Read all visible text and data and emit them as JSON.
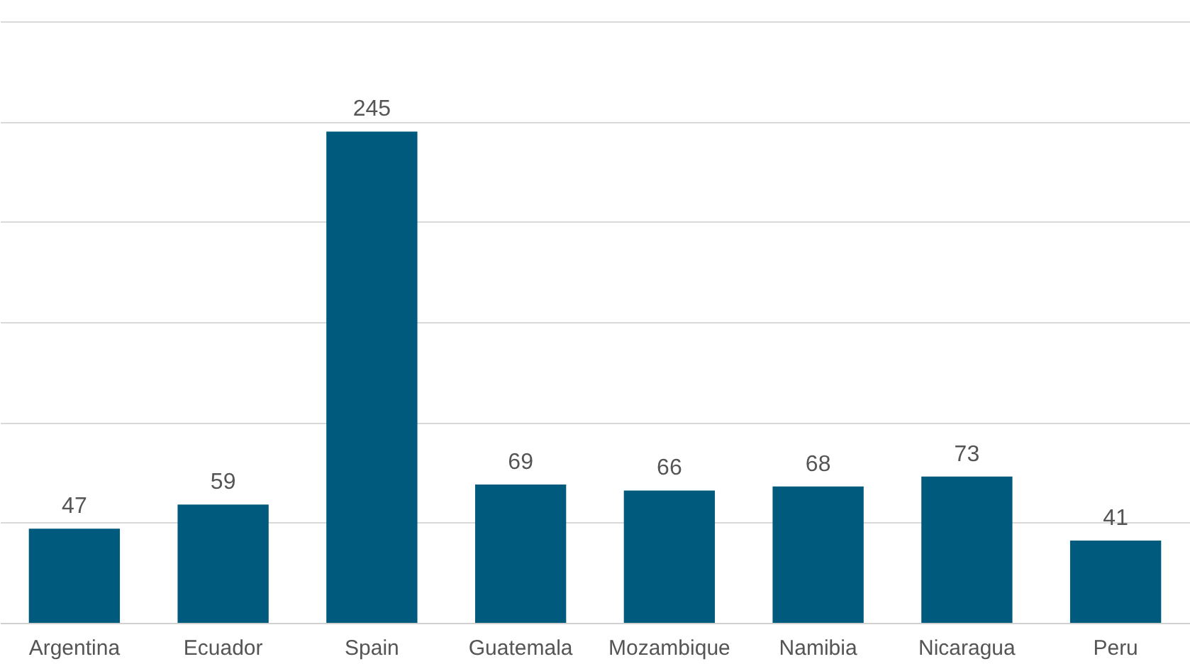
{
  "chart_data": {
    "type": "bar",
    "categories": [
      "Argentina",
      "Ecuador",
      "Spain",
      "Guatemala",
      "Mozambique",
      "Namibia",
      "Nicaragua",
      "Peru"
    ],
    "values": [
      47,
      59,
      245,
      69,
      66,
      68,
      73,
      41
    ],
    "color": "#005a7d",
    "ylim": [
      0,
      300
    ],
    "yticks": [
      {
        "value": 0,
        "label": null
      },
      {
        "value": 50,
        "label": null
      },
      {
        "value": 100,
        "label": null
      },
      {
        "value": 150,
        "label": null
      },
      {
        "value": 200,
        "label": null
      },
      {
        "value": 250,
        "label": null
      },
      {
        "value": 300,
        "label": null
      }
    ],
    "grid": "y",
    "data_labels": true,
    "tick_labels": "x"
  }
}
